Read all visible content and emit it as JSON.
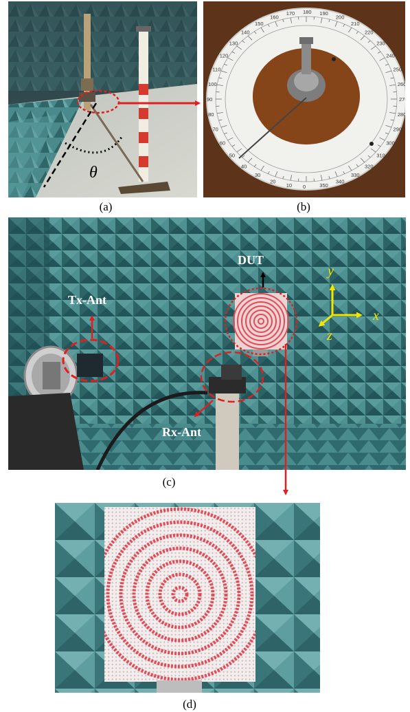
{
  "captions": {
    "a": "(a)",
    "b": "(b)",
    "c": "(c)",
    "d": "(d)"
  },
  "labels": {
    "theta": "θ",
    "dut": "DUT",
    "tx_ant": "Tx-Ant",
    "rx_ant": "Rx-Ant",
    "axis_x": "x",
    "axis_y": "y",
    "axis_z": "z"
  },
  "dial_numbers": [
    "0",
    "10",
    "20",
    "30",
    "40",
    "50",
    "60",
    "70",
    "80",
    "90",
    "100",
    "110",
    "120",
    "130",
    "140",
    "150",
    "160",
    "170",
    "180",
    "190",
    "200",
    "210",
    "220",
    "230",
    "240",
    "250",
    "260",
    "270",
    "280",
    "290",
    "300",
    "310",
    "320",
    "330",
    "340",
    "350"
  ],
  "colors": {
    "absorber": "#3f7f80",
    "absorber_dark": "#24595c",
    "annotation_red": "#e02020",
    "axis_yellow": "#f2e500",
    "label_white": "#ffffff",
    "pcb_red": "#e24a56"
  }
}
